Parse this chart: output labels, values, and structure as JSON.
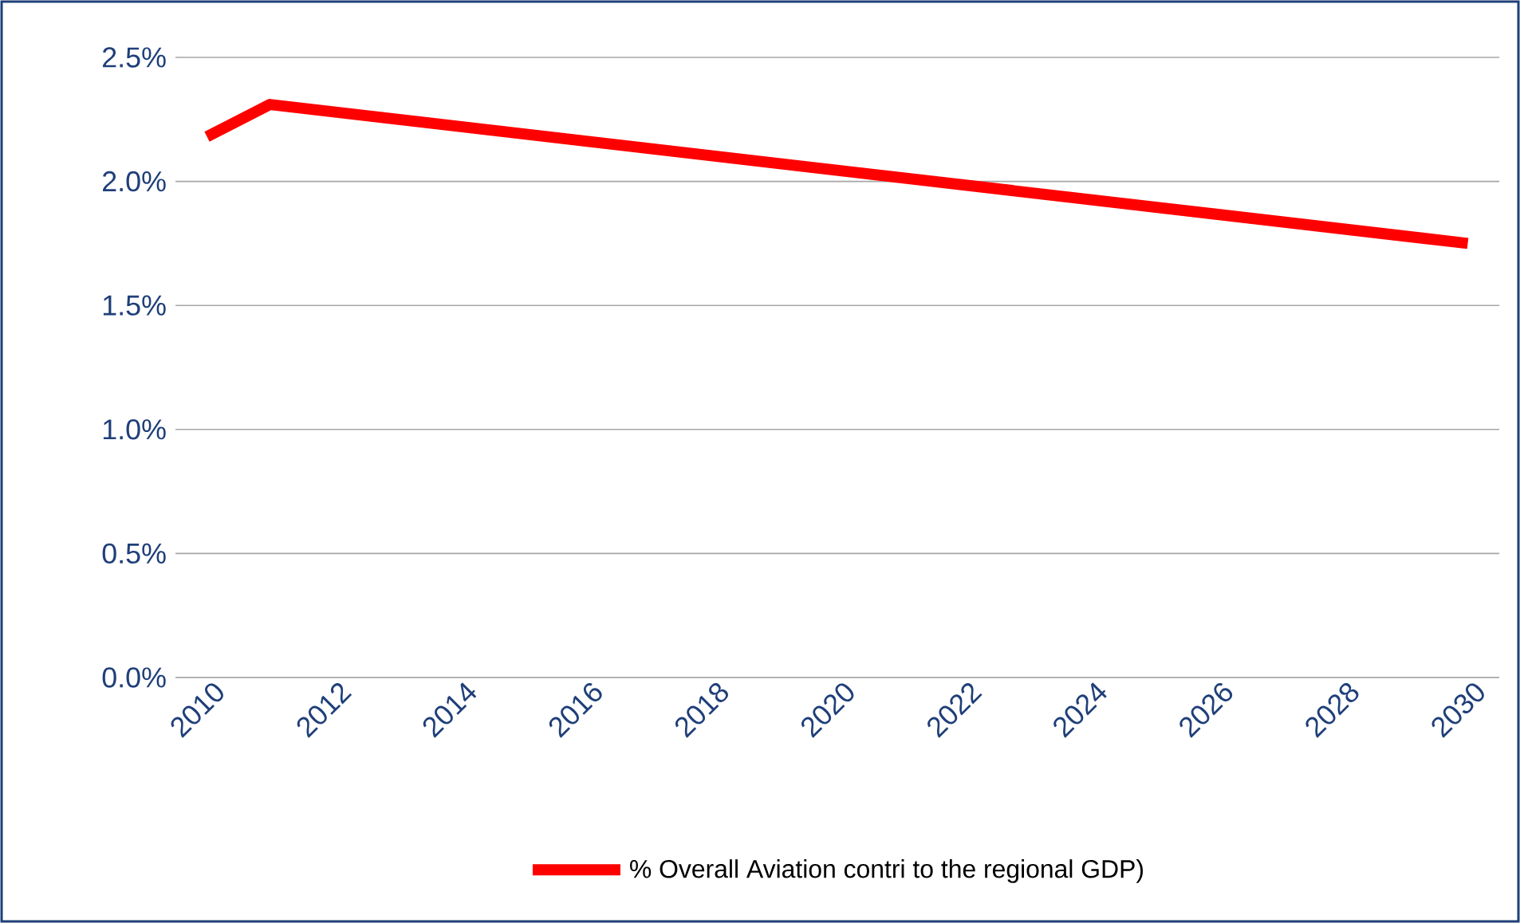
{
  "chart_data": {
    "type": "line",
    "x": [
      2010,
      2011,
      2030
    ],
    "series": [
      {
        "name": "% Overall Aviation contri  to the regional GDP)",
        "color": "#ff0000",
        "values": [
          2.18,
          2.31,
          1.75
        ]
      }
    ],
    "xlim": [
      2009.5,
      2030.5
    ],
    "xticks": [
      2010,
      2012,
      2014,
      2016,
      2018,
      2020,
      2022,
      2024,
      2026,
      2028,
      2030
    ],
    "ylim": [
      0,
      2.5
    ],
    "yticks": [
      {
        "value": 0,
        "label": "0.0%"
      },
      {
        "value": 0.5,
        "label": "0.5%"
      },
      {
        "value": 1.0,
        "label": "1.0%"
      },
      {
        "value": 1.5,
        "label": "1.5%"
      },
      {
        "value": 2.0,
        "label": "2.0%"
      },
      {
        "value": 2.5,
        "label": "2.5%"
      }
    ],
    "grid": "y",
    "legend": "bottom",
    "marker": "none",
    "line_style": "solid"
  }
}
